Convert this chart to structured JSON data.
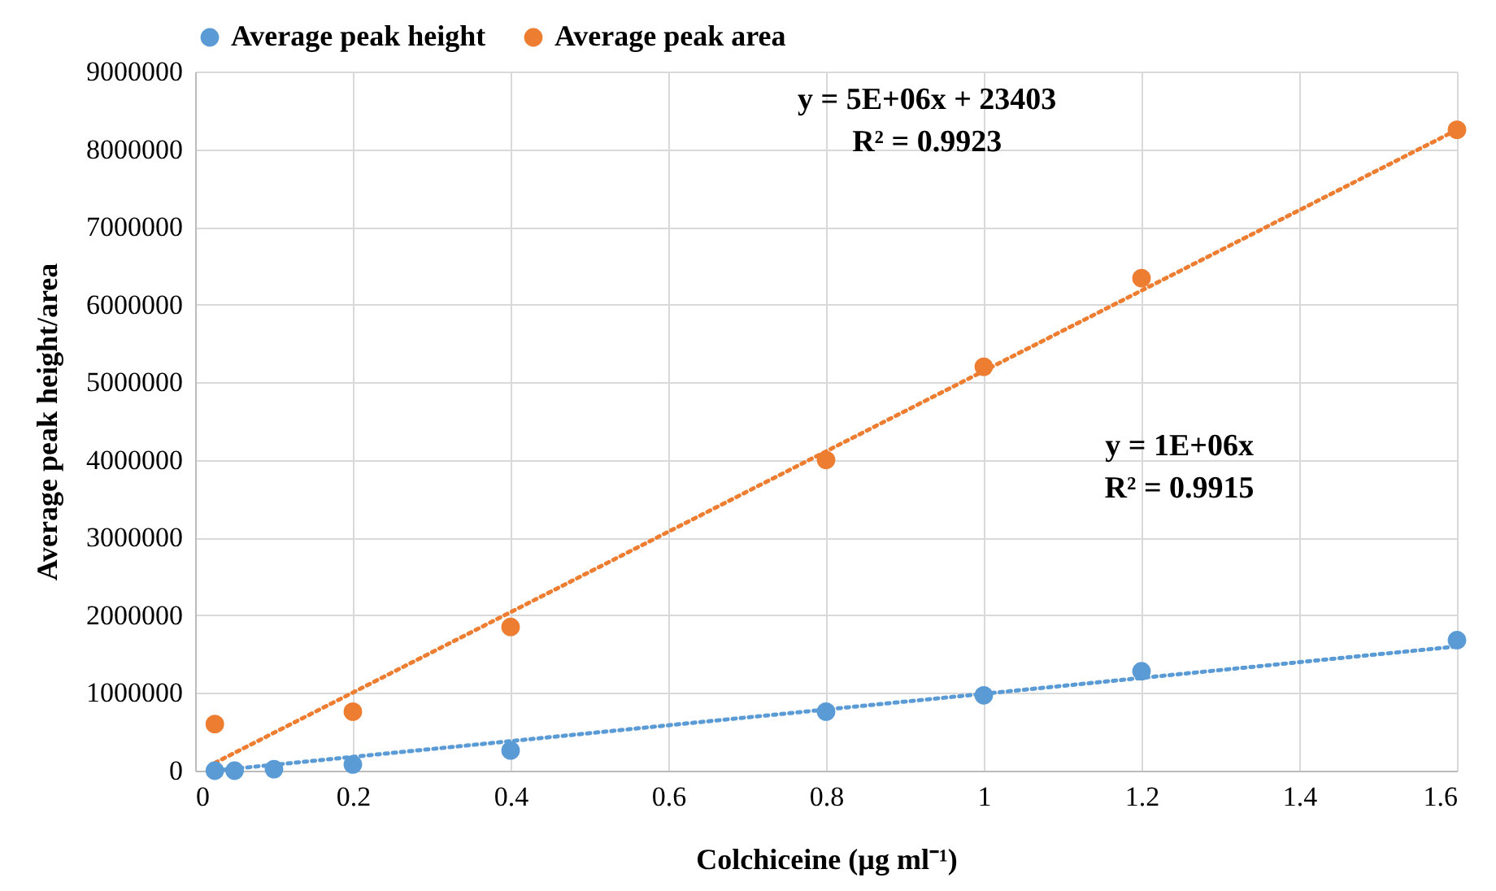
{
  "chart_data": {
    "type": "scatter",
    "xlabel": "Colchiceine (µg ml⁻¹)",
    "ylabel": "Average peak height/area",
    "xlim": [
      0,
      1.6
    ],
    "xticks": [
      0,
      0.2,
      0.4,
      0.6,
      0.8,
      1,
      1.2,
      1.4,
      1.6
    ],
    "ylim": [
      0,
      9000000
    ],
    "yticks": [
      0,
      1000000,
      2000000,
      3000000,
      4000000,
      5000000,
      6000000,
      7000000,
      8000000,
      9000000
    ],
    "grid": true,
    "legend": "top",
    "series": [
      {
        "name": "Average peak height",
        "color": "#5b9bd5",
        "marker": "circle",
        "x": [
          0.025,
          0.05,
          0.1,
          0.2,
          0.4,
          0.8,
          1,
          1.2,
          1.6
        ],
        "values": [
          0,
          0,
          20000,
          80000,
          260000,
          760000,
          970000,
          1280000,
          1680000
        ]
      },
      {
        "name": "Average peak area",
        "color": "#ed7d31",
        "marker": "circle",
        "x": [
          0.025,
          0.2,
          0.4,
          0.8,
          1,
          1.2,
          1.6
        ],
        "values": [
          600000,
          760000,
          1850000,
          4000000,
          5200000,
          6340000,
          8250000
        ]
      },
      {
        "type": "line",
        "line_style": "dotted",
        "marker": "none",
        "color": "#5b9bd5",
        "x": [
          0.025,
          1.6
        ],
        "values": [
          0,
          1600000
        ]
      },
      {
        "type": "line",
        "line_style": "dotted",
        "marker": "none",
        "color": "#ed7d31",
        "x": [
          0.025,
          1.6
        ],
        "values": [
          100000,
          8250000
        ]
      }
    ],
    "annotations": [
      "y = 5E+06x + 23403",
      "R² = 0.9923",
      "y = 1E+06x",
      "R² = 0.9915"
    ]
  }
}
